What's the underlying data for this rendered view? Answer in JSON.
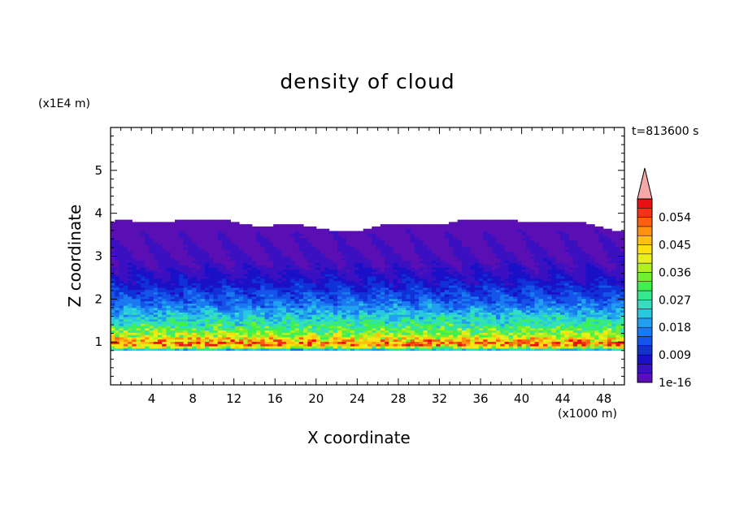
{
  "chart_data": {
    "type": "heatmap",
    "title": "density of cloud",
    "xlabel": "X coordinate",
    "ylabel": "Z coordinate",
    "x_unit": "(x1000 m)",
    "y_unit": "(x1E4 m)",
    "time_label": "t=813600 s",
    "xlim": [
      0,
      50
    ],
    "ylim": [
      0,
      6
    ],
    "x_ticks": [
      "4",
      "8",
      "12",
      "16",
      "20",
      "24",
      "28",
      "32",
      "36",
      "40",
      "44",
      "48"
    ],
    "y_ticks": [
      "1",
      "2",
      "3",
      "4",
      "5"
    ],
    "colorbar": {
      "labels": [
        "1e-16",
        "0.009",
        "0.018",
        "0.027",
        "0.036",
        "0.045",
        "0.054"
      ],
      "label_values": [
        0,
        0.009,
        0.018,
        0.027,
        0.036,
        0.045,
        0.054
      ],
      "levels": [
        0,
        0.003,
        0.006,
        0.009,
        0.012,
        0.015,
        0.018,
        0.021,
        0.024,
        0.027,
        0.03,
        0.033,
        0.036,
        0.039,
        0.042,
        0.045,
        0.048,
        0.051,
        0.054,
        0.057
      ],
      "colors": [
        "#5a0fb4",
        "#3a10c0",
        "#1a10c8",
        "#1030d8",
        "#1454e8",
        "#1a78f0",
        "#22a0f0",
        "#2ac8e0",
        "#30e0c0",
        "#34e890",
        "#40f050",
        "#70f030",
        "#b0f020",
        "#e8f018",
        "#ffe010",
        "#ffc010",
        "#ff9010",
        "#ff6010",
        "#f83018",
        "#e81010"
      ],
      "extend_color": "#f4a8a8"
    },
    "profile": [
      {
        "z": 0.78,
        "value": 0.004
      },
      {
        "z": 0.85,
        "value": 0.03
      },
      {
        "z": 0.95,
        "value": 0.052
      },
      {
        "z": 1.05,
        "value": 0.046
      },
      {
        "z": 1.15,
        "value": 0.038
      },
      {
        "z": 1.3,
        "value": 0.032
      },
      {
        "z": 1.45,
        "value": 0.027
      },
      {
        "z": 1.6,
        "value": 0.023
      },
      {
        "z": 1.8,
        "value": 0.018
      },
      {
        "z": 2.0,
        "value": 0.014
      },
      {
        "z": 2.2,
        "value": 0.011
      },
      {
        "z": 2.4,
        "value": 0.008
      },
      {
        "z": 2.6,
        "value": 0.006
      },
      {
        "z": 2.8,
        "value": 0.004
      },
      {
        "z": 3.0,
        "value": 0.003
      },
      {
        "z": 3.3,
        "value": 0.002
      },
      {
        "z": 3.6,
        "value": 0.001
      },
      {
        "z": 3.85,
        "value": 0.0
      }
    ]
  }
}
